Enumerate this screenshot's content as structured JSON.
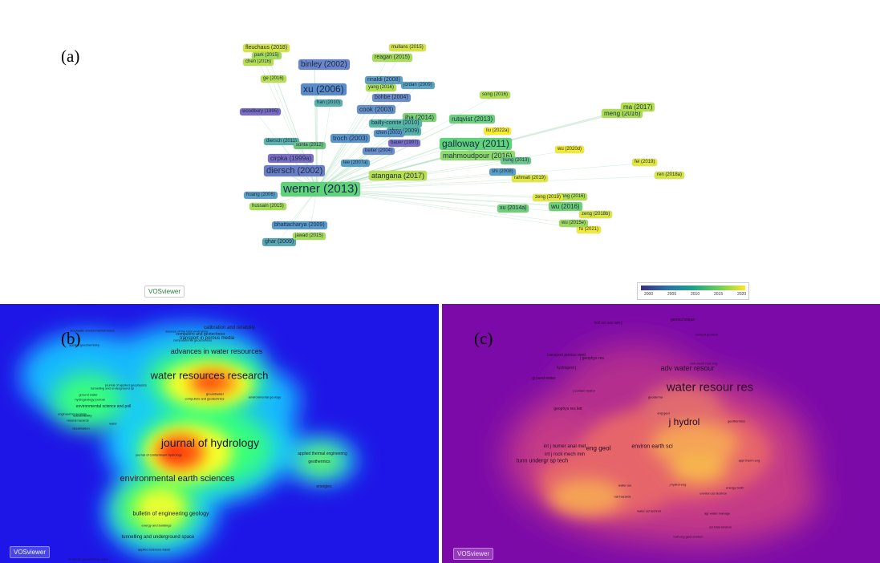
{
  "panel_labels": {
    "a": "(a)",
    "b": "(b)",
    "c": "(c)"
  },
  "logo_text": "VOSviewer",
  "legend": {
    "ticks": [
      "2000",
      "2005",
      "2010",
      "2015",
      "2020"
    ],
    "colors": [
      "#3b2f80",
      "#2d70a6",
      "#1fa187",
      "#6ccd59",
      "#fde725"
    ]
  },
  "network_nodes": [
    {
      "label": "werner (2013)",
      "color": "#5fd37a"
    },
    {
      "label": "galloway (2011)",
      "color": "#5fd37a"
    },
    {
      "label": "xu (2006)",
      "color": "#5b8bc9"
    },
    {
      "label": "diersch (2002)",
      "color": "#6a7fc6"
    },
    {
      "label": "binley (2002)",
      "color": "#6a86c9"
    },
    {
      "label": "mahmoudpour (2016)",
      "color": "#8fdb6c"
    },
    {
      "label": "atangana (2017)",
      "color": "#b8e04e"
    },
    {
      "label": "rutqvist (2013)",
      "color": "#6ed07c"
    },
    {
      "label": "jha (2014)",
      "color": "#7fd374"
    },
    {
      "label": "meng (2016)",
      "color": "#a9de55"
    },
    {
      "label": "ma (2017)",
      "color": "#b5e04e"
    },
    {
      "label": "wu (2016)",
      "color": "#6fd074"
    },
    {
      "label": "cook (2003)",
      "color": "#6793c8"
    },
    {
      "label": "cirpka (1999a)",
      "color": "#7a6fc3"
    },
    {
      "label": "troch (2003)",
      "color": "#5d95c9"
    },
    {
      "label": "bailly-comte (2010)",
      "color": "#58b8a8"
    },
    {
      "label": "chou (2009)",
      "color": "#55b4a9"
    },
    {
      "label": "bhattacharya (2009)",
      "color": "#5c9bc8"
    },
    {
      "label": "ghar (2009)",
      "color": "#59a8b4"
    },
    {
      "label": "reagan (2015)",
      "color": "#a9dd57"
    },
    {
      "label": "fleuchaus (2018)",
      "color": "#d6e544"
    },
    {
      "label": "rinaldi (2008)",
      "color": "#63a1c4"
    },
    {
      "label": "bohbe (2004)",
      "color": "#6d8dc8"
    },
    {
      "label": "xu (2014a)",
      "color": "#6fcf78"
    },
    {
      "label": "huang (2006)",
      "color": "#5da0c4"
    },
    {
      "label": "rahmati (2019)",
      "color": "#e1e83c"
    },
    {
      "label": "wu (2020d)",
      "color": "#f2ea30"
    },
    {
      "label": "diersch (2011)",
      "color": "#5db2ab"
    },
    {
      "label": "lee (2007a)",
      "color": "#5c9fc6"
    },
    {
      "label": "hung (2013)",
      "color": "#6fc68a"
    },
    {
      "label": "shi (2008)",
      "color": "#5aa0c6"
    },
    {
      "label": "woodbury (1995)",
      "color": "#7b6bc1"
    },
    {
      "label": "sonta (2012)",
      "color": "#6ec47f"
    },
    {
      "label": "chen (2003)",
      "color": "#5d97c7"
    },
    {
      "label": "chen (2016)",
      "color": "#b8df50"
    },
    {
      "label": "park (2015)",
      "color": "#a4db5a"
    },
    {
      "label": "jawad (2015)",
      "color": "#a6dc58"
    },
    {
      "label": "hussain (2015)",
      "color": "#a8dd57"
    },
    {
      "label": "ge (2016)",
      "color": "#b6e04f"
    },
    {
      "label": "han (2010)",
      "color": "#5ab0ad"
    },
    {
      "label": "wang (2016)",
      "color": "#b3df51"
    },
    {
      "label": "zeng (2018b)",
      "color": "#d8e543"
    },
    {
      "label": "fu (2021)",
      "color": "#f5eb2e"
    },
    {
      "label": "wu (2015e)",
      "color": "#9fd95c"
    },
    {
      "label": "song (2016)",
      "color": "#b2df52"
    },
    {
      "label": "fei (2019)",
      "color": "#e4e83b"
    },
    {
      "label": "zeng (2019)",
      "color": "#e2e83c"
    },
    {
      "label": "beiter (2004)",
      "color": "#6a8ec8"
    },
    {
      "label": "bauer (1997)",
      "color": "#7a6fc2"
    },
    {
      "label": "yang (2016)",
      "color": "#b2df51"
    },
    {
      "label": "jordan (2009)",
      "color": "#5fa5c2"
    },
    {
      "label": "mullans (2015)",
      "color": "#d7e544"
    },
    {
      "label": "ren (2018a)",
      "color": "#d8e543"
    },
    {
      "label": "liu (2022a)",
      "color": "#f8ec2b"
    }
  ],
  "density_b_labels": [
    {
      "label": "water resources research",
      "size": 13
    },
    {
      "label": "journal of hydrology",
      "size": 14
    },
    {
      "label": "environmental earth sciences",
      "size": 11
    },
    {
      "label": "advances in water resources",
      "size": 9
    },
    {
      "label": "bulletin of engineering geology",
      "size": 7
    },
    {
      "label": "tunnelling and underground space",
      "size": 6
    },
    {
      "label": "calibration and reliability",
      "size": 6
    },
    {
      "label": "transport in porous media",
      "size": 6
    },
    {
      "label": "environmental science and poll",
      "size": 5
    },
    {
      "label": "computers and geotechnics",
      "size": 5
    },
    {
      "label": "applied thermal engineering",
      "size": 5
    },
    {
      "label": "geothermics",
      "size": 5
    },
    {
      "label": "energies",
      "size": 5
    },
    {
      "label": "applied geochemistry",
      "size": 4
    },
    {
      "label": "science of the total environme",
      "size": 4
    },
    {
      "label": "computational geosciences",
      "size": 4
    },
    {
      "label": "journal of applied geophysics",
      "size": 4
    },
    {
      "label": "groundwater",
      "size": 4
    },
    {
      "label": "environmental geology",
      "size": 4
    },
    {
      "label": "hydrogeology journal",
      "size": 4
    },
    {
      "label": "applied sciences-basel",
      "size": 4
    },
    {
      "label": "desalination",
      "size": 4
    },
    {
      "label": "engineering geology",
      "size": 4
    },
    {
      "label": "stochastic environmental resea",
      "size": 4
    },
    {
      "label": "natural hazards",
      "size": 4
    },
    {
      "label": "tunnelling and underground sp",
      "size": 4
    },
    {
      "label": "journal of contaminant hydrology",
      "size": 4
    },
    {
      "label": "computers and geotechnics",
      "size": 4
    },
    {
      "label": "ground water",
      "size": 4
    },
    {
      "label": "water",
      "size": 4
    },
    {
      "label": "sustainability",
      "size": 4
    },
    {
      "label": "energy and buildings",
      "size": 4
    },
    {
      "label": "american geophysical union",
      "size": 4
    }
  ],
  "density_c_labels": [
    {
      "label": "water resour res",
      "size": 15
    },
    {
      "label": "j hydrol",
      "size": 12
    },
    {
      "label": "adv water resour",
      "size": 9
    },
    {
      "label": "eng geol",
      "size": 8
    },
    {
      "label": "environ earth sci",
      "size": 7
    },
    {
      "label": "tunn undergr sp tech",
      "size": 7
    },
    {
      "label": "int j rock mech min",
      "size": 6
    },
    {
      "label": "int j numer anal met",
      "size": 6
    },
    {
      "label": "geotechnique",
      "size": 5
    },
    {
      "label": "transport porous med",
      "size": 5
    },
    {
      "label": "ground water",
      "size": 5
    },
    {
      "label": "hydrogeol j",
      "size": 5
    },
    {
      "label": "geophys res lett",
      "size": 5
    },
    {
      "label": "j geophys res",
      "size": 5
    },
    {
      "label": "soil sci soc am j",
      "size": 5
    },
    {
      "label": "water sci technol",
      "size": 4
    },
    {
      "label": "geothermics",
      "size": 4
    },
    {
      "label": "appl therm eng",
      "size": 4
    },
    {
      "label": "energy build",
      "size": 4
    },
    {
      "label": "environ sci technol",
      "size": 4
    },
    {
      "label": "sci total environ",
      "size": 4
    },
    {
      "label": "j contam hydrol",
      "size": 4
    },
    {
      "label": "comput geotech",
      "size": 4
    },
    {
      "label": "water-sui",
      "size": 4
    },
    {
      "label": "nat hazards",
      "size": 4
    },
    {
      "label": "bull eng geol environ",
      "size": 4
    },
    {
      "label": "agr water manage",
      "size": 4
    },
    {
      "label": "j hydrol eng",
      "size": 4
    },
    {
      "label": "rock mech rock eng",
      "size": 4
    },
    {
      "label": "geoderma",
      "size": 4
    },
    {
      "label": "eng geol",
      "size": 4
    }
  ]
}
